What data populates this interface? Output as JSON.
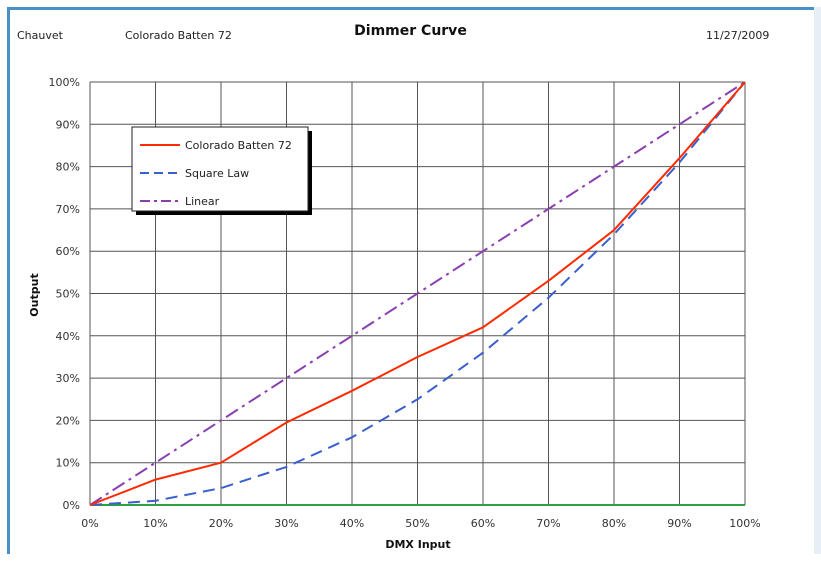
{
  "header": {
    "manufacturer": "Chauvet",
    "fixture": "Colorado Batten 72",
    "date": "11/27/2009"
  },
  "colors": {
    "colorado": "#ff2a00",
    "square_law": "#3a5fcd",
    "linear": "#8a3fb0",
    "baseline": "#2e9e3e",
    "grid": "#555555",
    "frame": "#4a90c8"
  },
  "chart_data": {
    "type": "line",
    "title": "Dimmer Curve",
    "xlabel": "DMX Input",
    "ylabel": "Output",
    "xlim": [
      0,
      100
    ],
    "ylim": [
      0,
      100
    ],
    "x_ticks": [
      "0%",
      "10%",
      "20%",
      "30%",
      "40%",
      "50%",
      "60%",
      "70%",
      "80%",
      "90%",
      "100%"
    ],
    "y_ticks": [
      "0%",
      "10%",
      "20%",
      "30%",
      "40%",
      "50%",
      "60%",
      "70%",
      "80%",
      "90%",
      "100%"
    ],
    "grid": true,
    "legend_position": "top-left",
    "x": [
      0,
      10,
      20,
      30,
      40,
      50,
      60,
      70,
      80,
      90,
      100
    ],
    "series": [
      {
        "name": "Colorado Batten 72",
        "style": "solid",
        "values": [
          0,
          6,
          10,
          19.5,
          27,
          35,
          42,
          53,
          65,
          82,
          100
        ]
      },
      {
        "name": "Square Law",
        "style": "dashed",
        "values": [
          0,
          1,
          4,
          9,
          16,
          25,
          36,
          49,
          64,
          81,
          100
        ]
      },
      {
        "name": "Linear",
        "style": "dash-dot",
        "values": [
          0,
          10,
          20,
          30,
          40,
          50,
          60,
          70,
          80,
          90,
          100
        ]
      }
    ]
  }
}
